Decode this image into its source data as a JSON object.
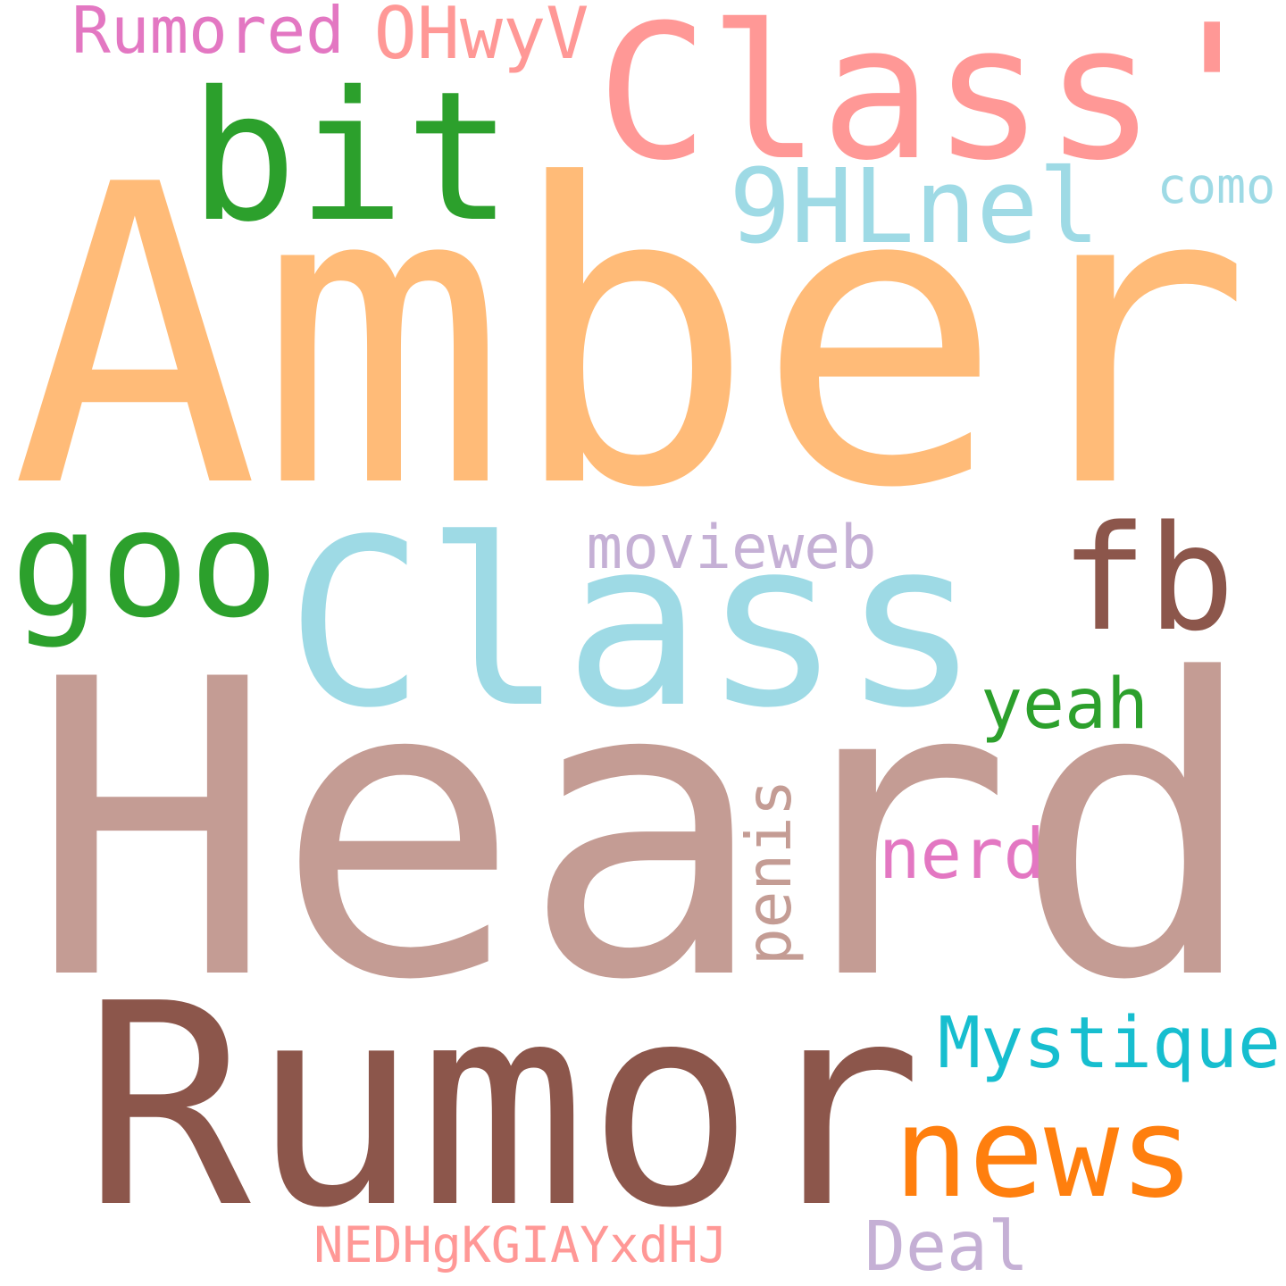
{
  "words": {
    "amber": {
      "text": "Amber",
      "color": "#ffbb78"
    },
    "heard": {
      "text": "Heard",
      "color": "#c49c94"
    },
    "rumor": {
      "text": "Rumor",
      "color": "#8c564b"
    },
    "class": {
      "text": "Class",
      "color": "#9edae5"
    },
    "class_quote": {
      "text": "Class'",
      "color": "#ff9896"
    },
    "bit": {
      "text": "bit",
      "color": "#2ca02c"
    },
    "goo": {
      "text": "goo",
      "color": "#2ca02c"
    },
    "fb": {
      "text": "fb",
      "color": "#8c564b"
    },
    "news": {
      "text": "news",
      "color": "#ff7f0e"
    },
    "hlnel": {
      "text": "9HLnel",
      "color": "#9edae5"
    },
    "movieweb": {
      "text": "movieweb",
      "color": "#c5b0d5"
    },
    "mystique": {
      "text": "Mystique",
      "color": "#17becf"
    },
    "rumored": {
      "text": "Rumored",
      "color": "#e377c2"
    },
    "ohwyv": {
      "text": "OHwyV",
      "color": "#ff9896"
    },
    "como": {
      "text": "como",
      "color": "#9edae5"
    },
    "yeah": {
      "text": "yeah",
      "color": "#2ca02c"
    },
    "penis": {
      "text": "penis",
      "color": "#c49c94"
    },
    "nerd": {
      "text": "nerd",
      "color": "#e377c2"
    },
    "deal": {
      "text": "Deal",
      "color": "#c5b0d5"
    },
    "nedhg": {
      "text": "NEDHgKGIAYxdHJ",
      "color": "#ff9896"
    }
  }
}
